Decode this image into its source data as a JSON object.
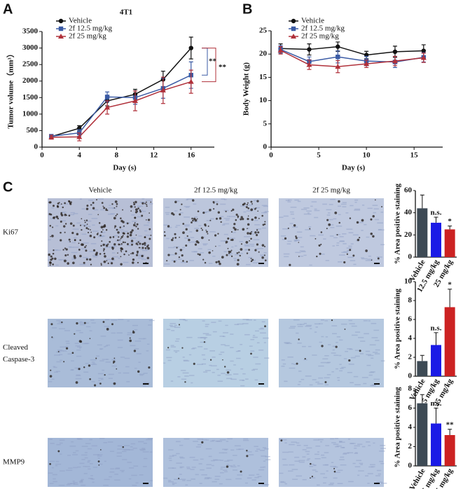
{
  "figure": {
    "panel": "C",
    "columns": [
      "Vehicle",
      "2f 12.5 mg/kg",
      "2f 25 mg/kg"
    ],
    "rows": [
      "Ki67",
      "Cleaved Caspase-3",
      "MMP9"
    ]
  },
  "chart_data": [
    {
      "type": "line",
      "panel": "A",
      "title": "4T1",
      "x_label": "Day (s)",
      "y_label": "Tumor volume（mm³）",
      "x": [
        1,
        4,
        7,
        10,
        13,
        16
      ],
      "xlim": [
        0,
        18.5
      ],
      "xticks": [
        0,
        4,
        8,
        12,
        16
      ],
      "ylim": [
        0,
        3500
      ],
      "yticks": [
        0,
        500,
        1000,
        1500,
        2000,
        2500,
        3000,
        3500
      ],
      "series": [
        {
          "name": "Vehicle",
          "color": "#111111",
          "marker": "circle",
          "values": [
            320,
            570,
            1400,
            1600,
            2050,
            3000
          ],
          "errors": [
            60,
            80,
            150,
            150,
            250,
            330
          ]
        },
        {
          "name": "2f 12.5 mg/kg",
          "color": "#3b5ba5",
          "marker": "square",
          "values": [
            330,
            430,
            1520,
            1500,
            1780,
            2180
          ],
          "errors": [
            50,
            100,
            150,
            200,
            300,
            400
          ]
        },
        {
          "name": "2f 25 mg/kg",
          "color": "#b0303a",
          "marker": "triangle",
          "values": [
            300,
            310,
            1200,
            1400,
            1720,
            1980
          ],
          "errors": [
            60,
            120,
            200,
            300,
            400,
            350
          ]
        }
      ],
      "annotations": [
        {
          "text": "**",
          "color": "#3b5ba5"
        },
        {
          "text": "**",
          "color": "#b0303a"
        }
      ]
    },
    {
      "type": "line",
      "panel": "B",
      "x_label": "Day (s)",
      "y_label": "Body Weight (g)",
      "x": [
        1,
        4,
        7,
        10,
        13,
        16
      ],
      "xlim": [
        0,
        18
      ],
      "xticks": [
        0,
        5,
        10,
        15
      ],
      "ylim": [
        0,
        25
      ],
      "yticks": [
        0,
        5,
        10,
        15,
        20,
        25
      ],
      "series": [
        {
          "name": "Vehicle",
          "color": "#111111",
          "marker": "circle",
          "values": [
            21.2,
            21,
            21.6,
            19.8,
            20.5,
            20.7
          ],
          "errors": [
            1,
            1.2,
            1,
            0.8,
            1.2,
            1.3
          ]
        },
        {
          "name": "2f 12.5 mg/kg",
          "color": "#3b5ba5",
          "marker": "square",
          "values": [
            21,
            18.4,
            19.4,
            18.5,
            18.3,
            19.3
          ],
          "errors": [
            0.8,
            1,
            1.3,
            1,
            1.2,
            1
          ]
        },
        {
          "name": "2f 25 mg/kg",
          "color": "#b0303a",
          "marker": "triangle",
          "values": [
            20.8,
            17.7,
            17.3,
            17.9,
            18.5,
            19.2
          ],
          "errors": [
            0.8,
            1,
            1.3,
            0.8,
            1,
            1
          ]
        }
      ]
    },
    {
      "type": "bar",
      "y_label": "% Area positive staining",
      "categories": [
        "Vehicle",
        "12.5 mg/kg",
        "25 mg/kg"
      ],
      "colors": [
        "#3d4a55",
        "#1a1ae6",
        "#cc2222"
      ],
      "values": [
        44,
        31,
        25
      ],
      "errors": [
        12,
        5,
        3
      ],
      "annotations": [
        null,
        "n.s.",
        "*"
      ],
      "ylim": [
        0,
        60
      ],
      "yticks": [
        0,
        20,
        40,
        60
      ]
    },
    {
      "type": "bar",
      "y_label": "% Area positive staining",
      "categories": [
        "Vehicle",
        "12.5 mg/kg",
        "25 mg/kg"
      ],
      "colors": [
        "#3d4a55",
        "#1a1ae6",
        "#cc2222"
      ],
      "values": [
        1.6,
        3.3,
        7.3
      ],
      "errors": [
        0.6,
        1.3,
        1.9
      ],
      "annotations": [
        null,
        "n.s.",
        "*"
      ],
      "ylim": [
        0,
        10
      ],
      "yticks": [
        0,
        2,
        4,
        6,
        8,
        10
      ]
    },
    {
      "type": "bar",
      "y_label": "% Area positive staining",
      "categories": [
        "Vehicle",
        "12.5 mg/kg",
        "25 mg/kg"
      ],
      "colors": [
        "#3d4a55",
        "#1a1ae6",
        "#cc2222"
      ],
      "values": [
        6.5,
        4.4,
        3.2
      ],
      "errors": [
        0.9,
        1.6,
        0.6
      ],
      "annotations": [
        null,
        "n.s.",
        "**"
      ],
      "ylim": [
        0,
        8
      ],
      "yticks": [
        0,
        2,
        4,
        6,
        8
      ]
    }
  ]
}
